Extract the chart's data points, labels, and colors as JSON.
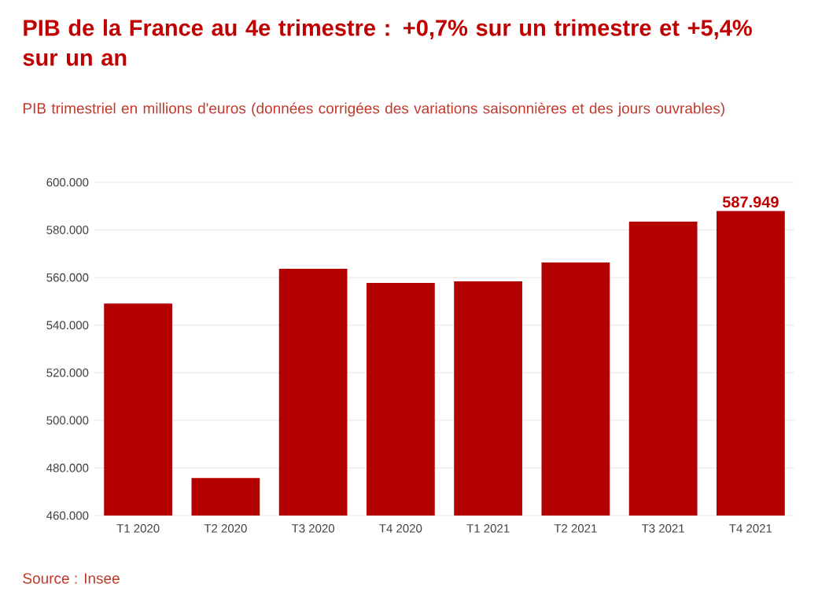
{
  "chart_data": {
    "type": "bar",
    "title": "PIB de la France au 4e trimestre : +0,7% sur un trimestre et +5,4% sur un an",
    "subtitle": "PIB trimestriel en millions d'euros (données corrigées des variations saisonnières et des jours ouvrables)",
    "categories": [
      "T1 2020",
      "T2 2020",
      "T3 2020",
      "T4 2020",
      "T1 2021",
      "T2 2021",
      "T3 2021",
      "T4 2021"
    ],
    "values": [
      549100,
      475800,
      563700,
      557700,
      558400,
      566300,
      583500,
      587949
    ],
    "value_labels": [
      null,
      null,
      null,
      null,
      null,
      null,
      null,
      "587.949"
    ],
    "color": "#b30000",
    "ylim": [
      460000,
      600000
    ],
    "yticks": [
      {
        "value": 460000,
        "label": "460.000"
      },
      {
        "value": 480000,
        "label": "480.000"
      },
      {
        "value": 500000,
        "label": "500.000"
      },
      {
        "value": 520000,
        "label": "520.000"
      },
      {
        "value": 540000,
        "label": "540.000"
      },
      {
        "value": 560000,
        "label": "560.000"
      },
      {
        "value": 580000,
        "label": "580.000"
      },
      {
        "value": 600000,
        "label": "600.000"
      }
    ],
    "grid": "y",
    "annotations": [
      "Source : Insee"
    ]
  }
}
